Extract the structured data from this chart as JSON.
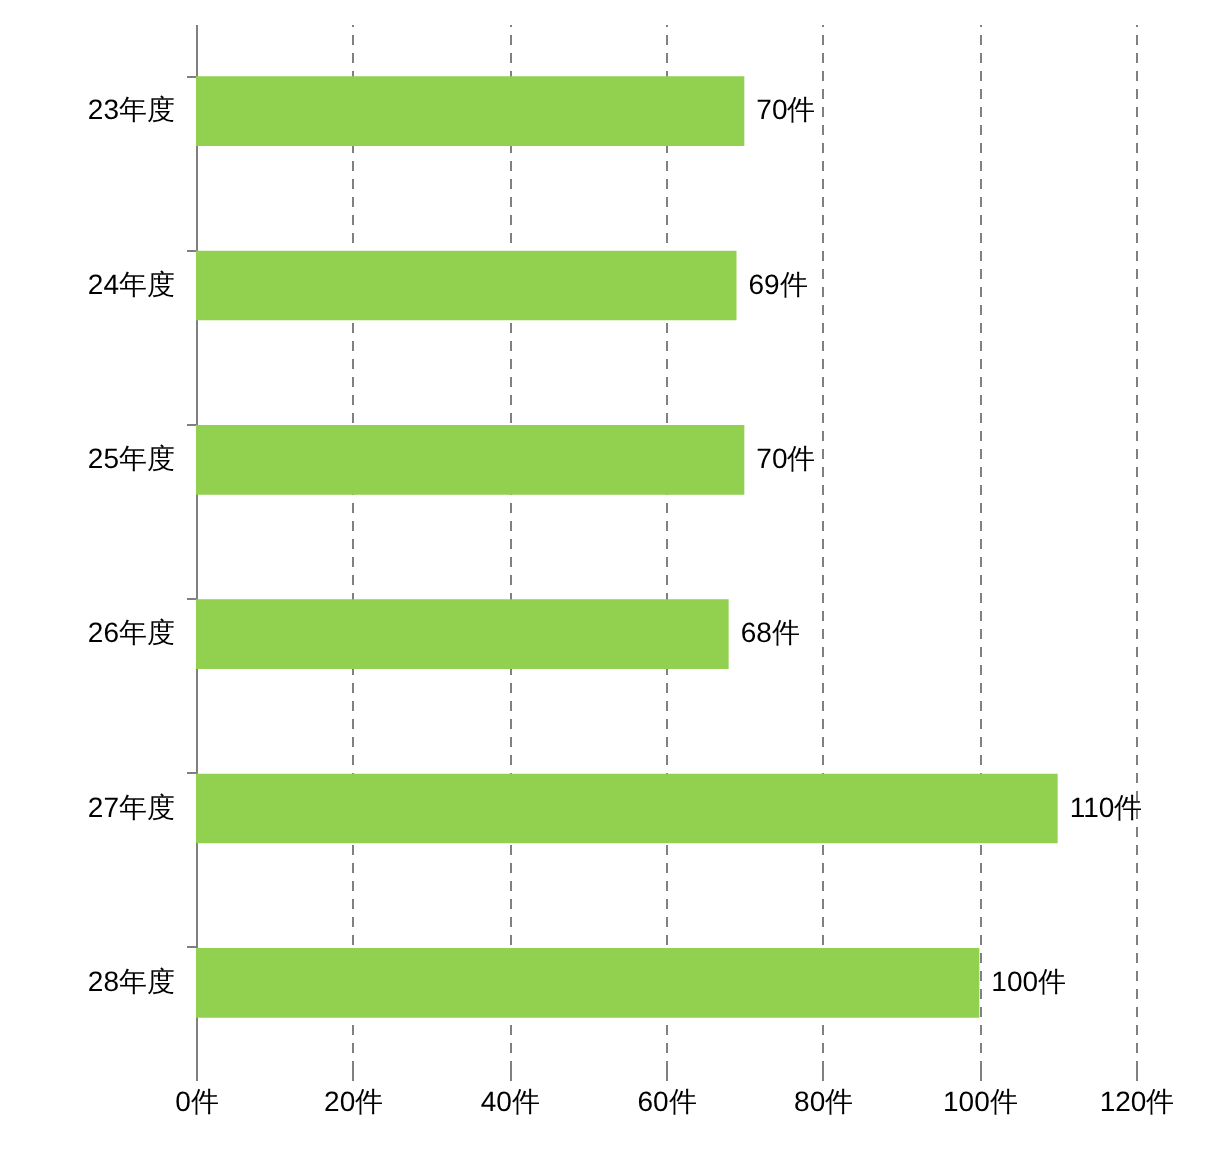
{
  "chart_data": {
    "type": "bar",
    "orientation": "horizontal",
    "categories": [
      "23年度",
      "24年度",
      "25年度",
      "26年度",
      "27年度",
      "28年度"
    ],
    "values": [
      70,
      69,
      70,
      68,
      110,
      100
    ],
    "value_labels": [
      "70件",
      "69件",
      "70件",
      "68件",
      "110件",
      "100件"
    ],
    "color": "#92d050",
    "xlim": [
      0,
      120
    ],
    "xticks": [
      {
        "value": 0,
        "label": "0件"
      },
      {
        "value": 20,
        "label": "20件"
      },
      {
        "value": 40,
        "label": "40件"
      },
      {
        "value": 60,
        "label": "60件"
      },
      {
        "value": 80,
        "label": "80件"
      },
      {
        "value": 100,
        "label": "100件"
      },
      {
        "value": 120,
        "label": "120件"
      }
    ],
    "grid": "x",
    "line_style": "dashed"
  }
}
